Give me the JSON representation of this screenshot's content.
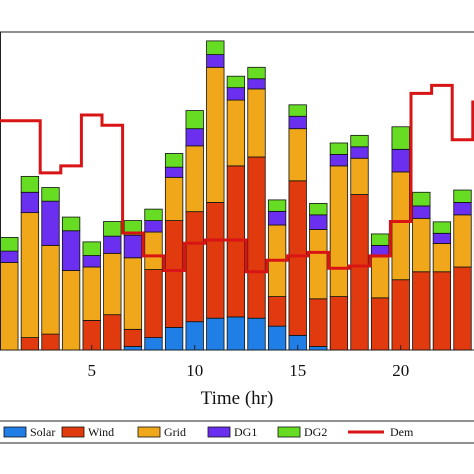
{
  "chart_data": {
    "type": "bar",
    "stacked": true,
    "xlabel": "Time (hr)",
    "x_ticks": [
      5,
      10,
      15,
      20
    ],
    "categories": [
      1,
      2,
      3,
      4,
      5,
      6,
      7,
      8,
      9,
      10,
      11,
      12,
      13,
      14,
      15,
      16,
      17,
      18,
      19,
      20,
      21,
      22,
      23,
      24
    ],
    "ylim": [
      0,
      100
    ],
    "series": [
      {
        "name": "Solar",
        "color": "#1f7fe6",
        "values": [
          0,
          0,
          0,
          0,
          0,
          0,
          1.1,
          3.9,
          7.1,
          8.9,
          10.0,
          10.4,
          10.0,
          7.5,
          4.6,
          1.1,
          0,
          0,
          0,
          0,
          0,
          0,
          0,
          0
        ]
      },
      {
        "name": "Wind",
        "color": "#e03a0e",
        "values": [
          0,
          3.9,
          5.0,
          0,
          9.3,
          11.1,
          5.4,
          21.4,
          33.6,
          34.6,
          36.4,
          47.5,
          50.7,
          9.3,
          48.6,
          15.0,
          16.8,
          48.9,
          16.4,
          22.1,
          24.6,
          24.6,
          26.1,
          28.2
        ]
      },
      {
        "name": "Grid",
        "color": "#f0a81a",
        "values": [
          27.5,
          39.3,
          27.9,
          25.0,
          16.8,
          19.3,
          22.5,
          11.8,
          13.6,
          20.7,
          42.5,
          20.7,
          21.4,
          22.5,
          16.4,
          21.8,
          41.1,
          11.4,
          12.9,
          33.9,
          16.8,
          8.9,
          16.4,
          11.0
        ]
      },
      {
        "name": "DG1",
        "color": "#6b2ff0",
        "values": [
          3.6,
          6.4,
          13.9,
          12.5,
          3.6,
          5.4,
          7.1,
          3.6,
          3.2,
          5.4,
          4.0,
          3.9,
          3.2,
          4.3,
          3.9,
          4.6,
          3.6,
          3.6,
          3.6,
          7.1,
          3.9,
          3.2,
          3.9,
          4.4
        ]
      },
      {
        "name": "DG2",
        "color": "#66dd22",
        "values": [
          4.3,
          5.0,
          4.3,
          4.3,
          4.3,
          4.6,
          4.6,
          3.6,
          4.3,
          5.7,
          4.3,
          3.6,
          3.6,
          3.6,
          3.6,
          3.6,
          3.6,
          3.6,
          3.6,
          7.1,
          4.3,
          3.6,
          3.9,
          3.5
        ]
      }
    ],
    "line_series": {
      "name": "Demand",
      "color": "#d81414",
      "values": [
        72.1,
        72.1,
        55.7,
        57.9,
        73.9,
        70.7,
        36.8,
        29.6,
        25.0,
        33.6,
        34.6,
        34.6,
        24.6,
        28.2,
        29.6,
        30.7,
        25.7,
        26.4,
        29.6,
        40.4,
        80.7,
        83.2,
        66.1,
        78.0
      ]
    },
    "legend": {
      "placement": "bottom",
      "entries": [
        {
          "label": "Solar",
          "kind": "patch",
          "color": "#1f7fe6"
        },
        {
          "label": "Wind",
          "kind": "patch",
          "color": "#e03a0e"
        },
        {
          "label": "Grid",
          "kind": "patch",
          "color": "#f0a81a"
        },
        {
          "label": "DG1",
          "kind": "patch",
          "color": "#6b2ff0"
        },
        {
          "label": "DG2",
          "kind": "patch",
          "color": "#66dd22"
        },
        {
          "label": "Dem",
          "kind": "line",
          "color": "#d81414"
        }
      ]
    }
  }
}
